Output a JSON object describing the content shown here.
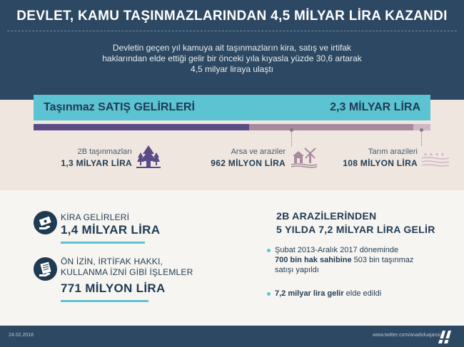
{
  "header": {
    "title": "DEVLET, KAMU TAŞINMAZLARINDAN 4,5 MİLYAR LİRA KAZANDI",
    "subtitle_lines": [
      "Devletin geçen yıl kamuya ait taşınmazların kira, satış ve irtifak",
      "haklarından elde ettiği gelir bir önceki yıla kıyasla yüzde 30,6 artarak",
      "4,5 milyar liraya ulaştı"
    ]
  },
  "sales": {
    "label": "Taşınmaz SATIŞ GELİRLERİ",
    "total": "2,3 MİLYAR LİRA",
    "breakdown_shares": [
      0.565,
      0.418,
      0.047
    ],
    "colors": {
      "seg1": "#5a4a86",
      "seg2": "#a88a9f",
      "seg3": "#cfb8c2",
      "accent": "#5cc3d2"
    },
    "categories": [
      {
        "label": "2B taşınmazları",
        "value": "1,3 MİLYAR LİRA",
        "icon": "tree-icon"
      },
      {
        "label": "Arsa ve araziler",
        "value": "962 MİLYON LİRA",
        "icon": "house-windmill-icon"
      },
      {
        "label": "Tarım arazileri",
        "value": "108 MİLYON LİRA",
        "icon": "field-icon"
      }
    ]
  },
  "rent": {
    "label": "KİRA GELİRLERİ",
    "value": "1,4 MİLYAR LİRA",
    "icon": "money-hand-icon"
  },
  "permits": {
    "label_lines": [
      "ÖN İZİN, İRTİFAK HAKKI,",
      "KULLANMA İZNİ GİBİ İŞLEMLER"
    ],
    "value": "771 MİLYON LİRA",
    "icon": "document-hand-icon"
  },
  "land_2b": {
    "heading_lines": [
      "2B ARAZİLERİNDEN",
      "5 YILDA 7,2 MİLYAR LİRA GELİR"
    ],
    "bullet1": {
      "line1": "Şubat 2013-Aralık 2017 döneminde",
      "line2_bold": "700 bin hak sahibine",
      "line2_rest": " 503 bin taşınmaz",
      "line3": "satışı yapıldı"
    },
    "bullet2": {
      "bold": "7,2 milyar lira gelir",
      "rest": " elde edildi"
    }
  },
  "footer": {
    "date": "24.02.2018",
    "twitter": "www.twitter.com/anadoluajansi",
    "logo_icon": "aa-logo-icon"
  }
}
